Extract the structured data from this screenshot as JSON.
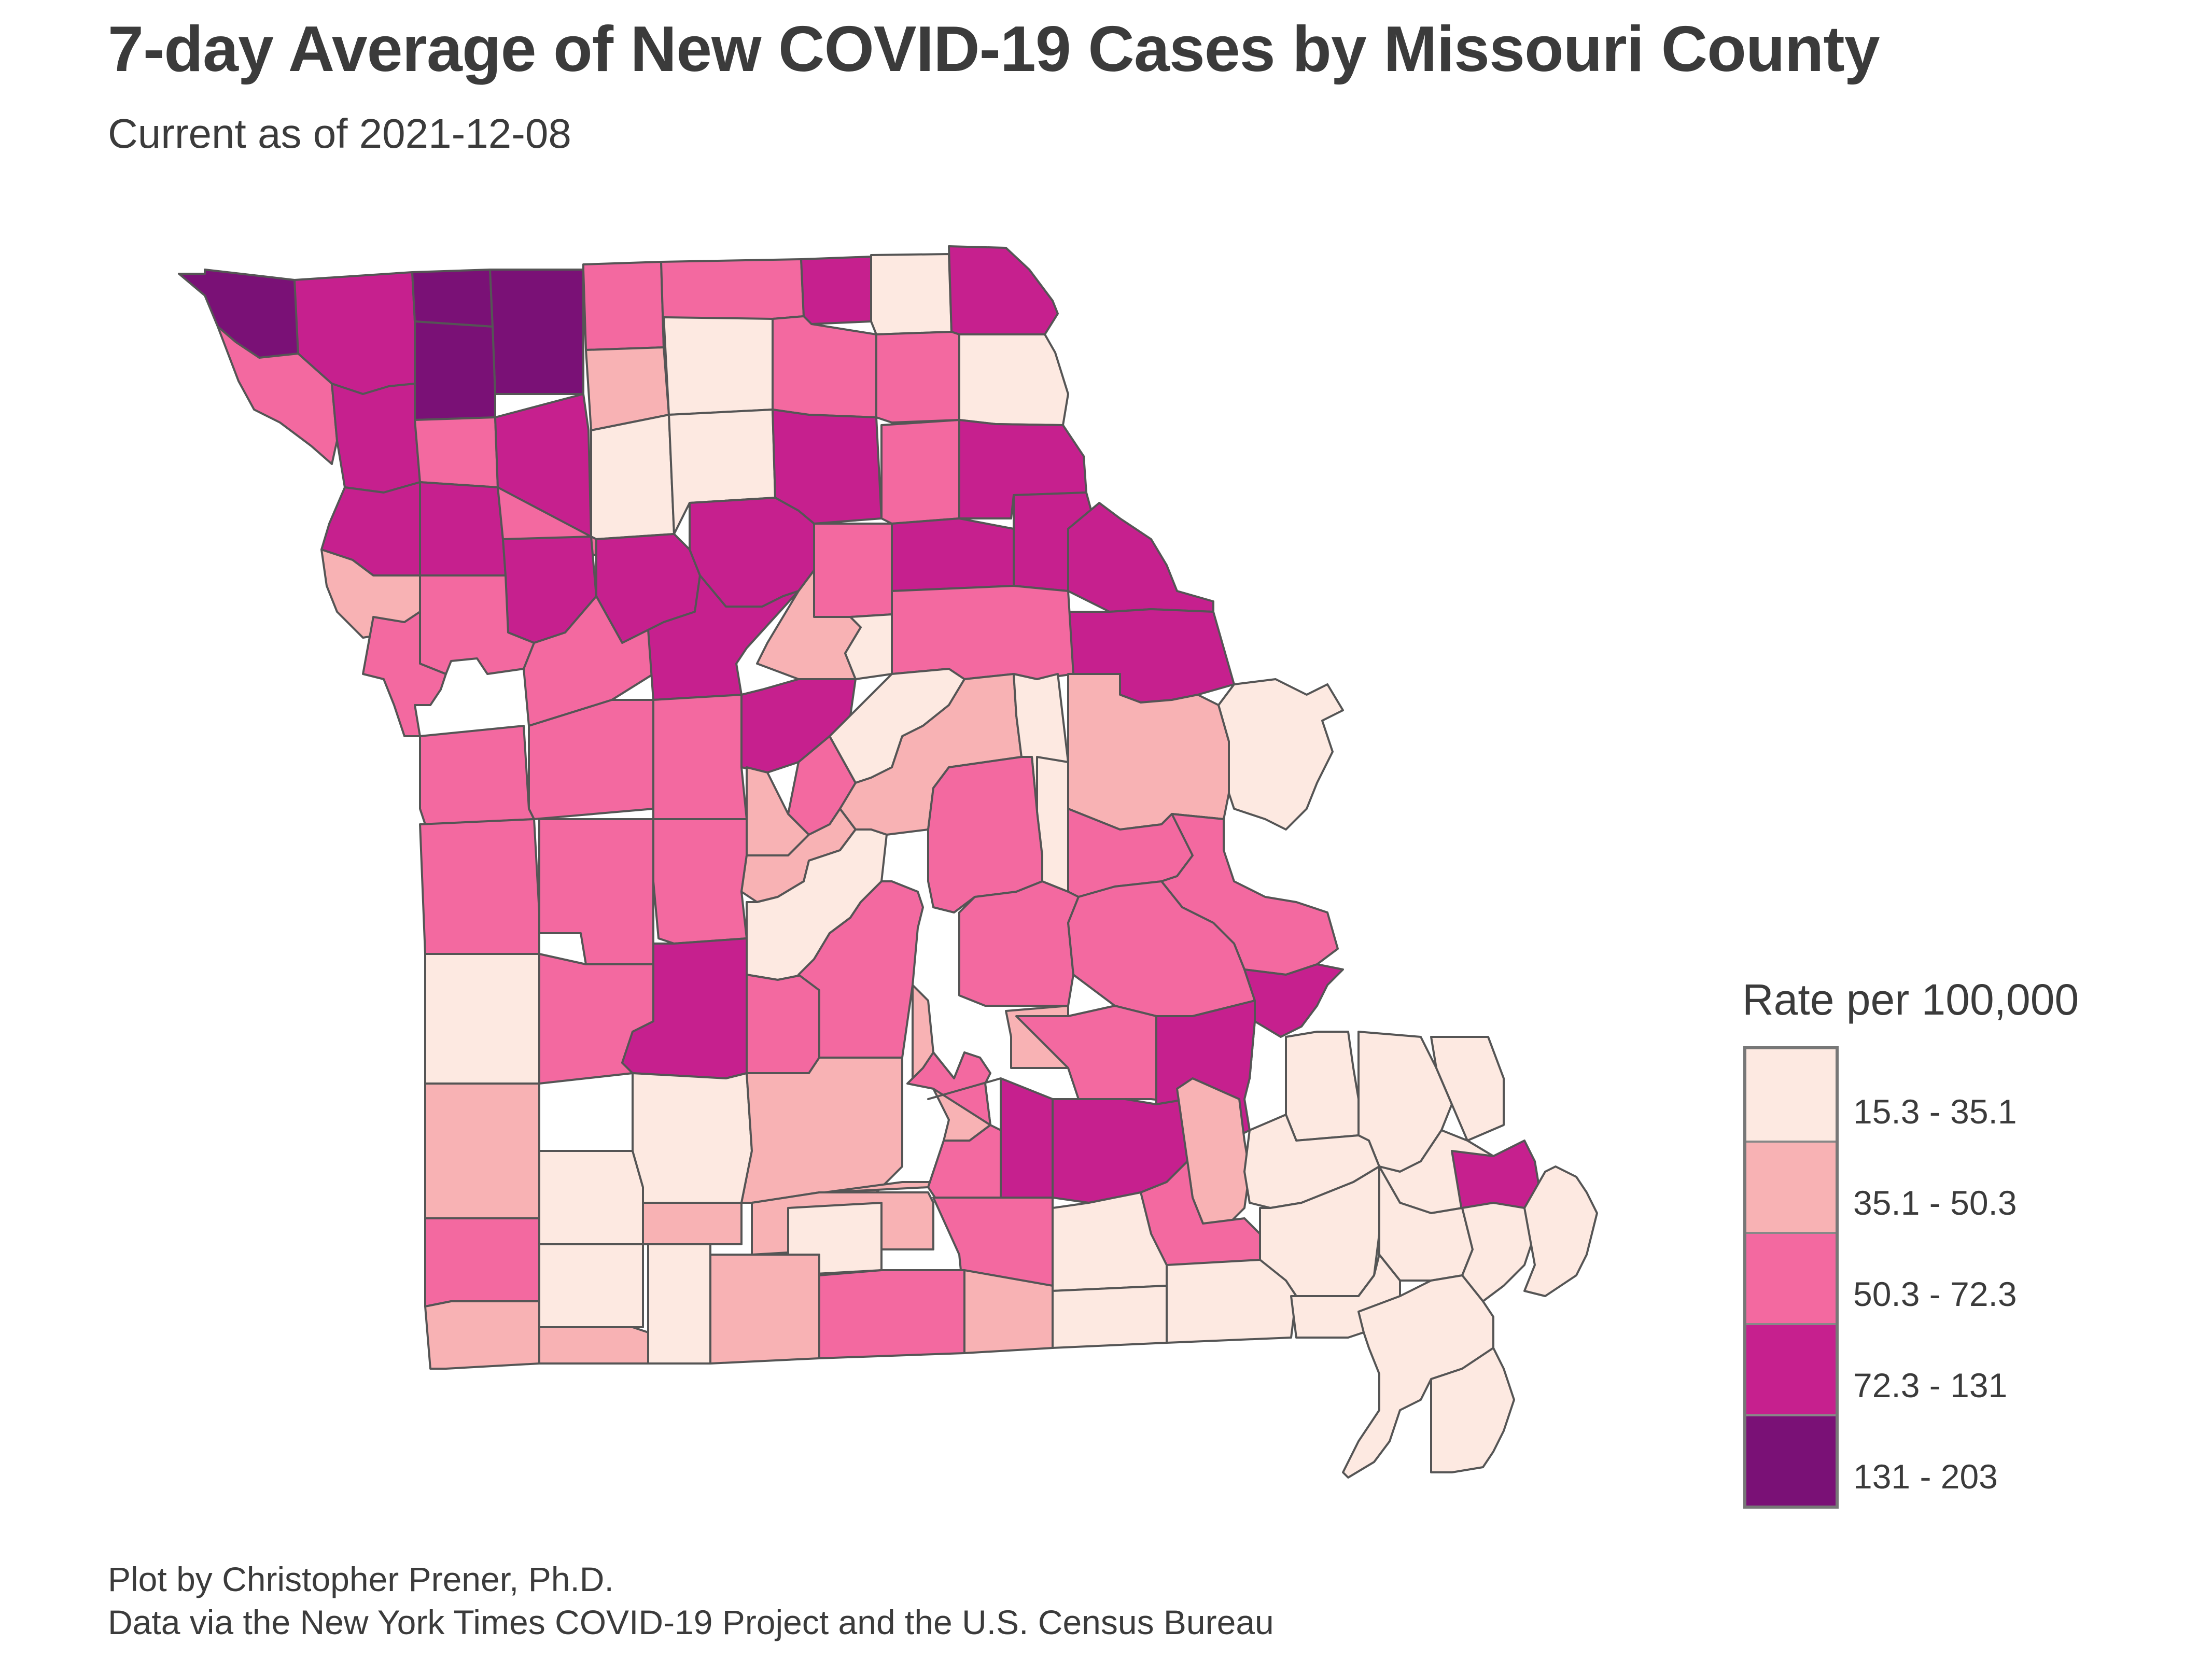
{
  "title": "7-day Average of New COVID-19 Cases by Missouri County",
  "subtitle": "Current as of 2021-12-08",
  "colors": {
    "outline": "#555555",
    "class_1": "#fde9e1",
    "class_2": "#f8b2b4",
    "class_3": "#f369a0",
    "class_4": "#c6208e",
    "class_5": "#7a1176"
  },
  "legend": {
    "title": "Rate per 100,000",
    "items": [
      {
        "label": "15.3 - 35.1",
        "color": "#fde9e1"
      },
      {
        "label": "35.1 - 50.3",
        "color": "#f8b2b4"
      },
      {
        "label": "50.3 - 72.3",
        "color": "#f369a0"
      },
      {
        "label": "72.3 - 131",
        "color": "#c6208e"
      },
      {
        "label": "131 - 203",
        "color": "#7a1176"
      }
    ]
  },
  "caption": {
    "line1": "Plot by Christopher Prener, Ph.D.",
    "line2": "Data via the New York Times COVID-19 Project and the U.S. Census Bureau"
  }
}
